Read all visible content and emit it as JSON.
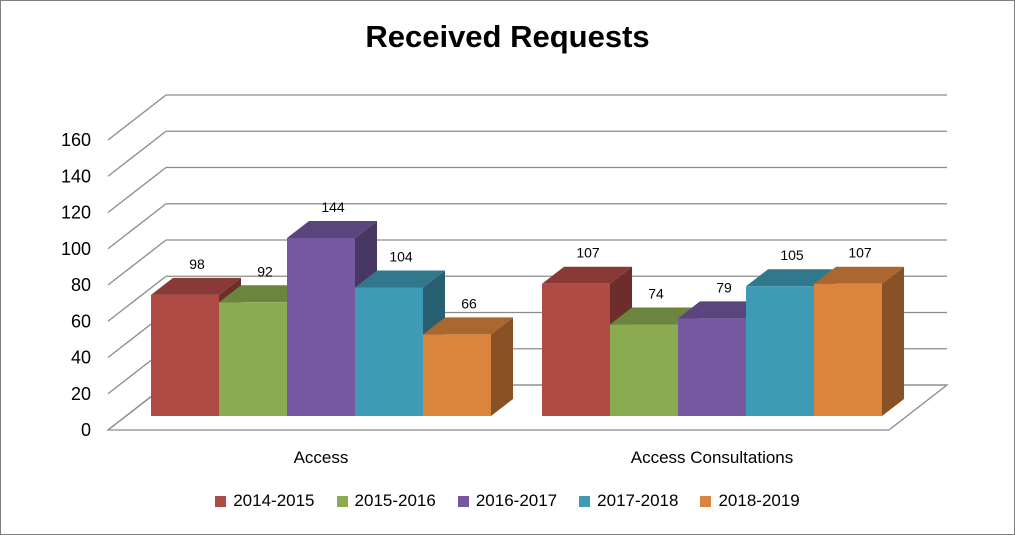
{
  "chart_data": {
    "type": "bar",
    "title": "Received Requests",
    "categories": [
      "Access",
      "Access Consultations"
    ],
    "series": [
      {
        "name": "2014-2015",
        "values": [
          98,
          107
        ],
        "color": "#b04a45"
      },
      {
        "name": "2015-2016",
        "values": [
          92,
          74
        ],
        "color": "#8aab4f"
      },
      {
        "name": "2016-2017",
        "values": [
          144,
          79
        ],
        "color": "#7558a0"
      },
      {
        "name": "2017-2018",
        "values": [
          104,
          105
        ],
        "color": "#3f9ab5"
      },
      {
        "name": "2018-2019",
        "values": [
          66,
          107
        ],
        "color": "#db843d"
      }
    ],
    "ylim": [
      0,
      160
    ],
    "yticks": [
      0,
      20,
      40,
      60,
      80,
      100,
      120,
      140,
      160
    ],
    "xlabel": "",
    "ylabel": "",
    "grid": true,
    "legend": "bottom"
  }
}
